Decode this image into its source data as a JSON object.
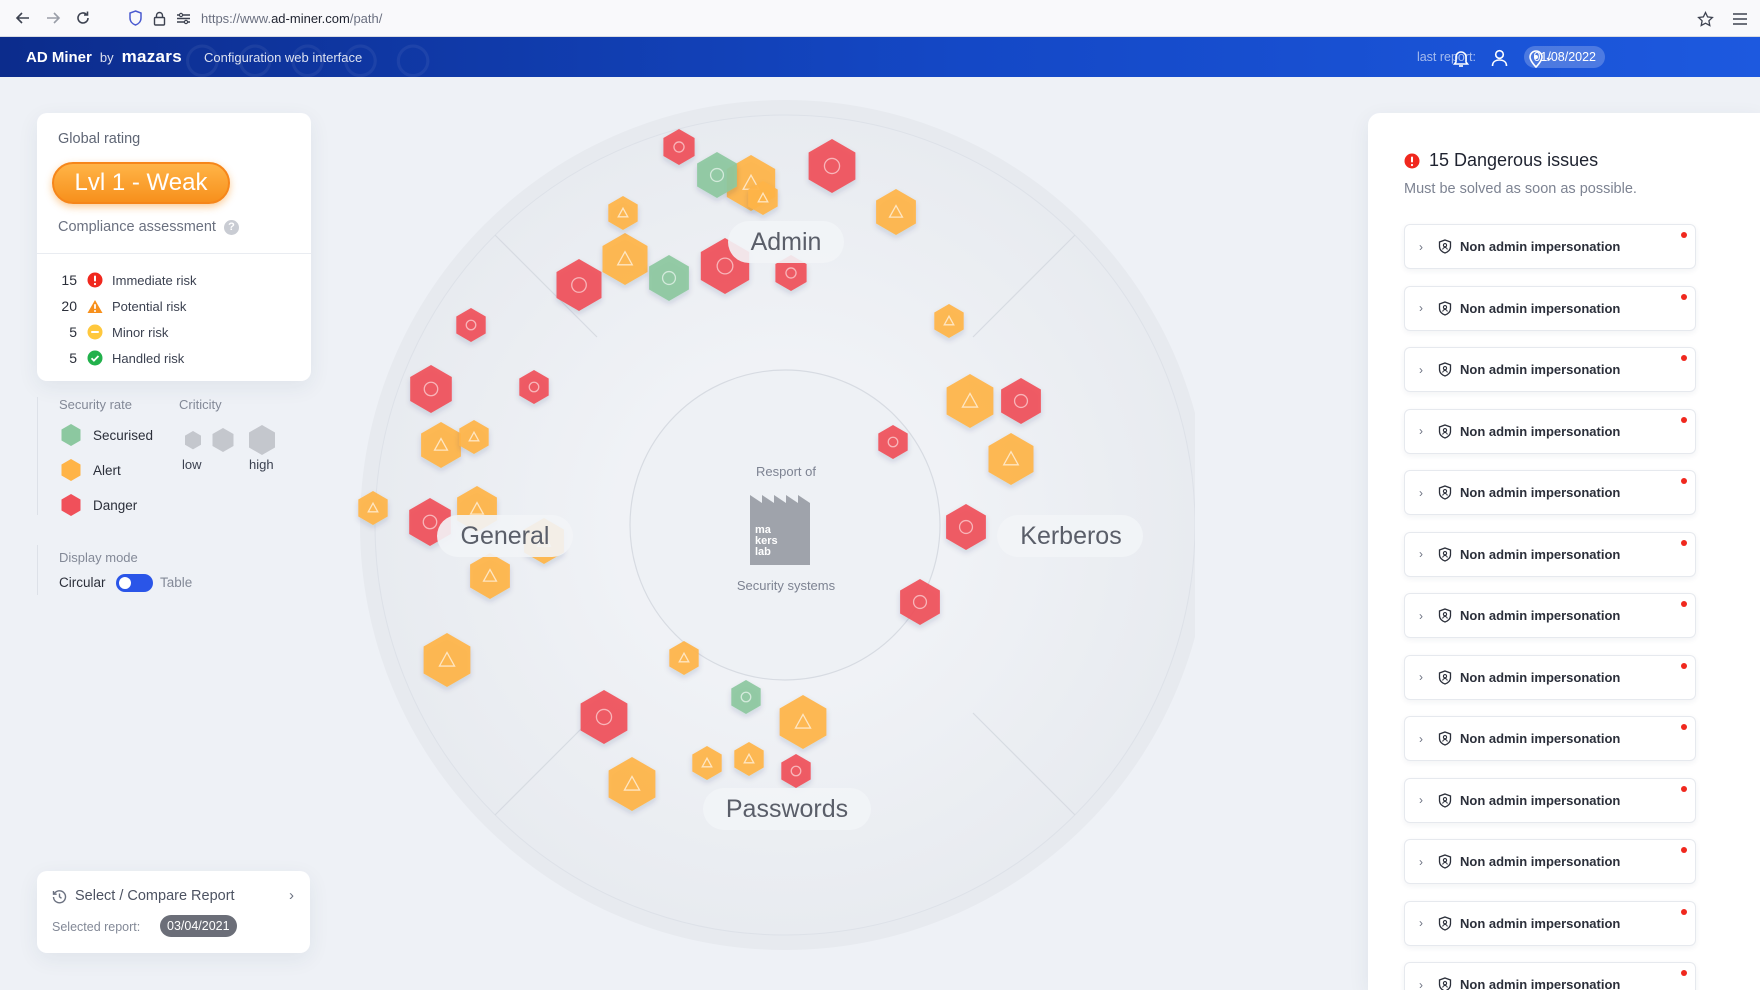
{
  "browser": {
    "url_prefix": "https://www.",
    "url_domain": "ad-miner.com",
    "url_path": "/path/"
  },
  "header": {
    "brand": "AD Miner",
    "by": "by",
    "company": "mazars",
    "subtitle": "Configuration web interface",
    "last_report_label": "last report:",
    "last_report_date": "01/08/2022"
  },
  "rating": {
    "title": "Global rating",
    "level": "Lvl 1 - Weak",
    "compliance": "Compliance assessment",
    "risks": [
      {
        "count": "15",
        "label": "Immediate risk",
        "icon": "immediate-risk-icon",
        "color": "#f0281e"
      },
      {
        "count": "20",
        "label": "Potential risk",
        "icon": "potential-risk-icon",
        "color": "#f7901c"
      },
      {
        "count": "5",
        "label": "Minor risk",
        "icon": "minor-risk-icon",
        "color": "#ffc83d"
      },
      {
        "count": "5",
        "label": "Handled risk",
        "icon": "handled-risk-icon",
        "color": "#22b14c"
      }
    ]
  },
  "legend": {
    "security_rate_title": "Security rate",
    "criticity_title": "Criticity",
    "items": [
      {
        "label": "Securised",
        "color": "#8cc8a0"
      },
      {
        "label": "Alert",
        "color": "#ffb447"
      },
      {
        "label": "Danger",
        "color": "#f0505a"
      }
    ],
    "criticity_low": "low",
    "criticity_high": "high"
  },
  "display_mode": {
    "title": "Display mode",
    "option_circular": "Circular",
    "option_table": "Table",
    "selected": "Circular"
  },
  "report": {
    "select_label": "Select / Compare Report",
    "selected_label": "Selected report:",
    "selected_date": "03/04/2021"
  },
  "map": {
    "center_title": "Resport of",
    "center_logo": [
      "ma",
      "kers",
      "lab"
    ],
    "center_subtitle": "Security systems",
    "sectors": [
      "Admin",
      "General",
      "Kerberos",
      "Passwords"
    ],
    "colors": {
      "danger": "#f0505a",
      "alert": "#ffb447",
      "securised": "#8cc8a0"
    }
  },
  "issues": {
    "title": "15 Dangerous issues",
    "subtitle": "Must be solved as soon as possible.",
    "items": [
      "Non admin impersonation",
      "Non admin impersonation",
      "Non admin impersonation",
      "Non admin impersonation",
      "Non admin impersonation",
      "Non admin impersonation",
      "Non admin impersonation",
      "Non admin impersonation",
      "Non admin impersonation",
      "Non admin impersonation",
      "Non admin impersonation",
      "Non admin impersonation",
      "Non admin impersonation"
    ]
  }
}
